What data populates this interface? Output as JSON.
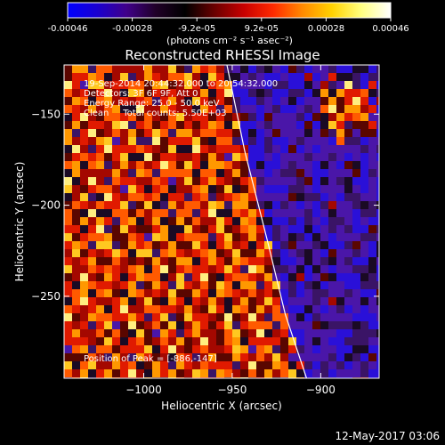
{
  "colorbar": {
    "ticks": [
      "-0.00046",
      "-0.00028",
      "-9.2e-05",
      "9.2e-05",
      "0.00028",
      "0.00046"
    ],
    "unit_label": "(photons cm⁻² s⁻¹ asec⁻²)",
    "colors": [
      "#0000ff",
      "#1a00d0",
      "#40008a",
      "#200028",
      "#000000",
      "#6a0000",
      "#c80000",
      "#ff2a00",
      "#ff8a00",
      "#ffd200",
      "#ffff80",
      "#ffffff"
    ]
  },
  "chart_data": {
    "type": "heatmap",
    "title": "Reconstructed RHESSI Image",
    "xlabel": "Heliocentric X (arcsec)",
    "ylabel": "Heliocentric Y (arcsec)",
    "xlim": [
      -1045,
      -867
    ],
    "ylim": [
      -295,
      -123
    ],
    "x_ticks": [
      -1000,
      -950,
      -900
    ],
    "y_ticks": [
      -150,
      -200,
      -250
    ],
    "x_tick_labels": [
      "−1000",
      "−950",
      "−900"
    ],
    "y_tick_labels": [
      "−150",
      "−200",
      "−250"
    ],
    "annotations": [
      "19-Sep-2014 20:44:32.000 to 20:54:32.000",
      "Detectors: 3F 6F 9F, Att 0",
      "Energy Range: 25.0 - 50.0 keV",
      "Clean     Total counts: 5.50E+03"
    ],
    "peak_label": "Position of Peak = [-886,-147]",
    "peak": [
      -886,
      -147
    ],
    "limb": [
      [
        -953,
        -123
      ],
      [
        -943,
        -170
      ],
      [
        -930,
        -220
      ],
      [
        -920,
        -260
      ],
      [
        -908,
        -295
      ]
    ]
  },
  "footer": {
    "timestamp": "12-May-2017 03:06"
  }
}
